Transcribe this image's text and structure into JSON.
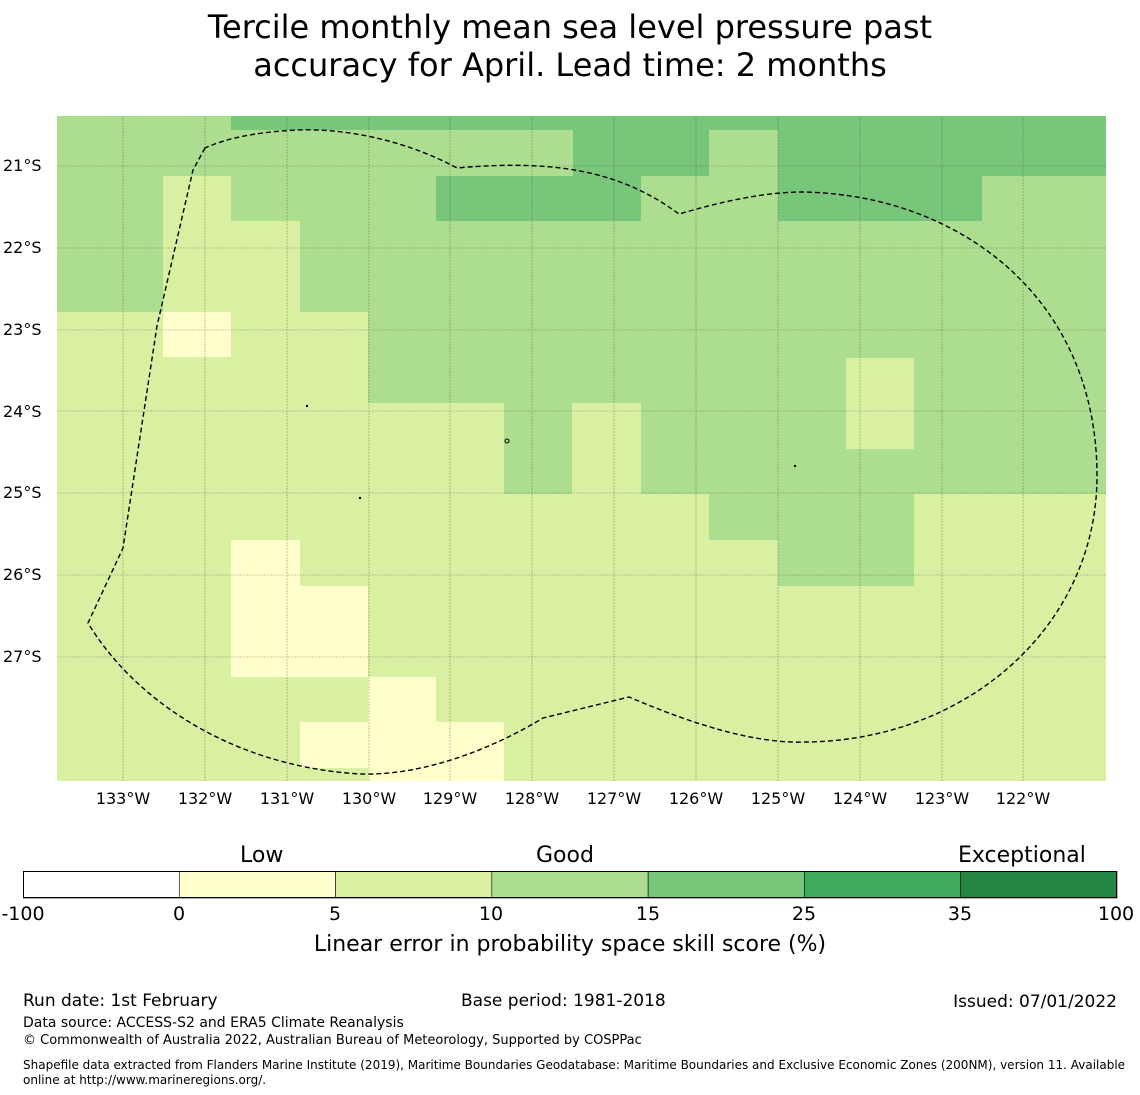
{
  "title": {
    "line1": "Tercile monthly mean sea level pressure past",
    "line2": "accuracy for April. Lead time: 2 months"
  },
  "map": {
    "lat_labels": [
      "21°S",
      "22°S",
      "23°S",
      "24°S",
      "25°S",
      "26°S",
      "27°S"
    ],
    "lon_labels": [
      "133°W",
      "132°W",
      "131°W",
      "130°W",
      "129°W",
      "128°W",
      "127°W",
      "126°W",
      "125°W",
      "124°W",
      "123°W",
      "122°W"
    ],
    "eez_boundary": "dashed"
  },
  "colorbar": {
    "categories": [
      "Low",
      "Good",
      "Exceptional"
    ],
    "ticks": [
      "-100",
      "0",
      "5",
      "10",
      "15",
      "25",
      "35",
      "100"
    ],
    "colors": [
      "#ffffff",
      "#ffffcc",
      "#d9f0a3",
      "#addd8e",
      "#78c679",
      "#41ab5d",
      "#238443"
    ],
    "label": "Linear error in probability space skill score (%)"
  },
  "footer": {
    "run_date": "Run date: 1st February",
    "base_period": "Base period: 1981-2018",
    "issued": "Issued: 07/01/2022",
    "data_source": "Data source: ACCESS-S2 and ERA5 Climate Reanalysis",
    "copyright": "© Commonwealth of Australia 2022, Australian Bureau of Meteorology, Supported by COSPPac",
    "shapefile": "Shapefile data extracted from Flanders Marine Institute (2019), Maritime Boundaries Geodatabase: Maritime Boundaries and Exclusive Economic Zones (200NM), version 11. Available online at http://www.marineregions.org/."
  }
}
